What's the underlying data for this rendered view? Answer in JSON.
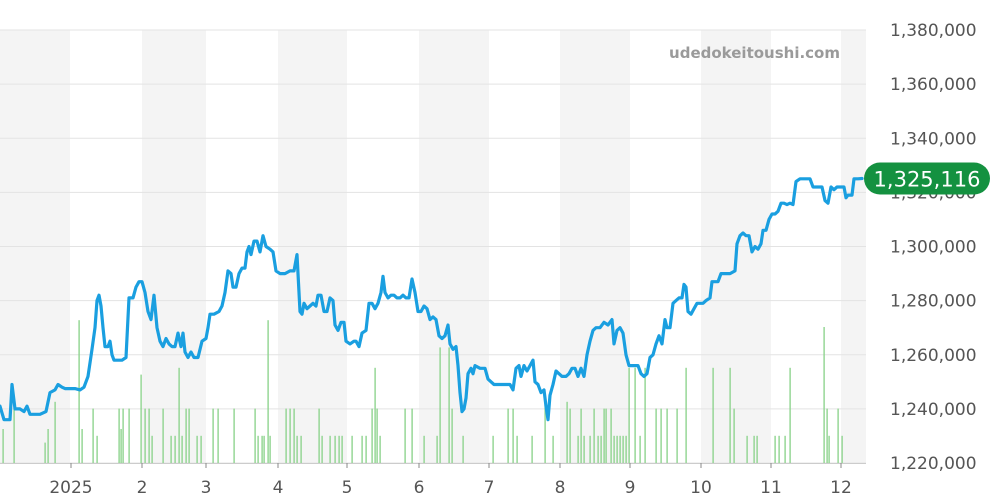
{
  "watermark": "udedokeitoushi.com",
  "chart_data": {
    "type": "line",
    "x_labels": [
      "2025",
      "2",
      "3",
      "4",
      "5",
      "6",
      "7",
      "8",
      "9",
      "10",
      "11",
      "12"
    ],
    "y_ticks": [
      "1,220,000",
      "1,240,000",
      "1,260,000",
      "1,280,000",
      "1,300,000",
      "1,320,000",
      "1,340,000",
      "1,360,000",
      "1,380,000"
    ],
    "ylim": [
      1220000,
      1380000
    ],
    "grid": true,
    "current_value_label": "1,325,116",
    "colors": {
      "line": "#1a9fe0",
      "volume": "#8fd48f",
      "badge": "#149140",
      "band": "#f4f4f4",
      "grid": "#e3e3e3"
    },
    "price_points": [
      [
        0,
        1241000
      ],
      [
        4,
        1236000
      ],
      [
        10,
        1236000
      ],
      [
        12,
        1249000
      ],
      [
        15,
        1240000
      ],
      [
        20,
        1240000
      ],
      [
        24,
        1239000
      ],
      [
        27,
        1241000
      ],
      [
        30,
        1238000
      ],
      [
        35,
        1238000
      ],
      [
        40,
        1238000
      ],
      [
        46,
        1239000
      ],
      [
        50,
        1246000
      ],
      [
        55,
        1247000
      ],
      [
        58,
        1249000
      ],
      [
        62,
        1248000
      ],
      [
        65,
        1247500
      ],
      [
        70,
        1247500
      ],
      [
        75,
        1247500
      ],
      [
        80,
        1247000
      ],
      [
        84,
        1248000
      ],
      [
        88,
        1252000
      ],
      [
        92,
        1262000
      ],
      [
        95,
        1270000
      ],
      [
        97,
        1280000
      ],
      [
        99,
        1282000
      ],
      [
        101,
        1278000
      ],
      [
        103,
        1270000
      ],
      [
        105,
        1263000
      ],
      [
        108,
        1263000
      ],
      [
        110,
        1265000
      ],
      [
        112,
        1260000
      ],
      [
        114,
        1258000
      ],
      [
        118,
        1258000
      ],
      [
        122,
        1258000
      ],
      [
        126,
        1259000
      ],
      [
        129,
        1281000
      ],
      [
        133,
        1281000
      ],
      [
        136,
        1285000
      ],
      [
        139,
        1287000
      ],
      [
        142,
        1287000
      ],
      [
        145,
        1283000
      ],
      [
        148,
        1276000
      ],
      [
        151,
        1273000
      ],
      [
        154,
        1282000
      ],
      [
        157,
        1270000
      ],
      [
        160,
        1265000
      ],
      [
        163,
        1263000
      ],
      [
        166,
        1266000
      ],
      [
        169,
        1264000
      ],
      [
        172,
        1263000
      ],
      [
        175,
        1263000
      ],
      [
        178,
        1268000
      ],
      [
        181,
        1263000
      ],
      [
        183,
        1268000
      ],
      [
        185,
        1261000
      ],
      [
        188,
        1259000
      ],
      [
        191,
        1261000
      ],
      [
        194,
        1259000
      ],
      [
        198,
        1259000
      ],
      [
        202,
        1265000
      ],
      [
        206,
        1266000
      ],
      [
        208,
        1270000
      ],
      [
        210,
        1275000
      ],
      [
        214,
        1275000
      ],
      [
        219,
        1276000
      ],
      [
        222,
        1278000
      ],
      [
        225,
        1283000
      ],
      [
        228,
        1291000
      ],
      [
        231,
        1290000
      ],
      [
        233,
        1285000
      ],
      [
        236,
        1285000
      ],
      [
        239,
        1290000
      ],
      [
        242,
        1292000
      ],
      [
        245,
        1292000
      ],
      [
        247,
        1298000
      ],
      [
        249,
        1300000
      ],
      [
        251,
        1297000
      ],
      [
        254,
        1302000
      ],
      [
        257,
        1302000
      ],
      [
        260,
        1298000
      ],
      [
        263,
        1304000
      ],
      [
        266,
        1300000
      ],
      [
        270,
        1299000
      ],
      [
        273,
        1298000
      ],
      [
        276,
        1291000
      ],
      [
        280,
        1290000
      ],
      [
        285,
        1290000
      ],
      [
        290,
        1291000
      ],
      [
        294,
        1291000
      ],
      [
        297,
        1297000
      ],
      [
        300,
        1276000
      ],
      [
        302,
        1275000
      ],
      [
        304,
        1279000
      ],
      [
        307,
        1277000
      ],
      [
        310,
        1278000
      ],
      [
        313,
        1279000
      ],
      [
        316,
        1278000
      ],
      [
        318,
        1282000
      ],
      [
        321,
        1282000
      ],
      [
        324,
        1276000
      ],
      [
        327,
        1276000
      ],
      [
        330,
        1281000
      ],
      [
        333,
        1280000
      ],
      [
        335,
        1271000
      ],
      [
        338,
        1269000
      ],
      [
        341,
        1272000
      ],
      [
        344,
        1272000
      ],
      [
        346,
        1265000
      ],
      [
        350,
        1264000
      ],
      [
        354,
        1265000
      ],
      [
        356,
        1265000
      ],
      [
        359,
        1263000
      ],
      [
        362,
        1268000
      ],
      [
        366,
        1269000
      ],
      [
        369,
        1279000
      ],
      [
        372,
        1279000
      ],
      [
        375,
        1277000
      ],
      [
        378,
        1279000
      ],
      [
        381,
        1283000
      ],
      [
        383,
        1289000
      ],
      [
        385,
        1283000
      ],
      [
        388,
        1281000
      ],
      [
        391,
        1282000
      ],
      [
        394,
        1282000
      ],
      [
        397,
        1281000
      ],
      [
        400,
        1281000
      ],
      [
        403,
        1282000
      ],
      [
        406,
        1281000
      ],
      [
        409,
        1281000
      ],
      [
        412,
        1288000
      ],
      [
        415,
        1283000
      ],
      [
        418,
        1276000
      ],
      [
        421,
        1276000
      ],
      [
        424,
        1278000
      ],
      [
        427,
        1277000
      ],
      [
        430,
        1273000
      ],
      [
        433,
        1274000
      ],
      [
        436,
        1273000
      ],
      [
        439,
        1267000
      ],
      [
        442,
        1266000
      ],
      [
        445,
        1267000
      ],
      [
        448,
        1271000
      ],
      [
        450,
        1264000
      ],
      [
        453,
        1262000
      ],
      [
        456,
        1263000
      ],
      [
        458,
        1256000
      ],
      [
        460,
        1246000
      ],
      [
        462,
        1239000
      ],
      [
        464,
        1240000
      ],
      [
        466,
        1244000
      ],
      [
        468,
        1253000
      ],
      [
        471,
        1255000
      ],
      [
        473,
        1253000
      ],
      [
        475,
        1256000
      ],
      [
        480,
        1255000
      ],
      [
        485,
        1255000
      ],
      [
        488,
        1251000
      ],
      [
        491,
        1250000
      ],
      [
        494,
        1249000
      ],
      [
        500,
        1249000
      ],
      [
        505,
        1249000
      ],
      [
        510,
        1249000
      ],
      [
        513,
        1247000
      ],
      [
        516,
        1255000
      ],
      [
        519,
        1256000
      ],
      [
        521,
        1252000
      ],
      [
        524,
        1256000
      ],
      [
        527,
        1254000
      ],
      [
        530,
        1256000
      ],
      [
        533,
        1258000
      ],
      [
        535,
        1250000
      ],
      [
        538,
        1249000
      ],
      [
        541,
        1246000
      ],
      [
        544,
        1247000
      ],
      [
        546,
        1241000
      ],
      [
        548,
        1236000
      ],
      [
        550,
        1245000
      ],
      [
        553,
        1249000
      ],
      [
        556,
        1254000
      ],
      [
        559,
        1253000
      ],
      [
        562,
        1252000
      ],
      [
        566,
        1252000
      ],
      [
        569,
        1253000
      ],
      [
        572,
        1255000
      ],
      [
        575,
        1255000
      ],
      [
        578,
        1252000
      ],
      [
        581,
        1255000
      ],
      [
        584,
        1252000
      ],
      [
        587,
        1260000
      ],
      [
        590,
        1265000
      ],
      [
        593,
        1269000
      ],
      [
        596,
        1270000
      ],
      [
        600,
        1270000
      ],
      [
        604,
        1272000
      ],
      [
        608,
        1271000
      ],
      [
        612,
        1273000
      ],
      [
        614,
        1264000
      ],
      [
        617,
        1269000
      ],
      [
        620,
        1270000
      ],
      [
        623,
        1268000
      ],
      [
        626,
        1260000
      ],
      [
        629,
        1256000
      ],
      [
        632,
        1256000
      ],
      [
        635,
        1256000
      ],
      [
        638,
        1256000
      ],
      [
        641,
        1253000
      ],
      [
        644,
        1252000
      ],
      [
        647,
        1253000
      ],
      [
        650,
        1259000
      ],
      [
        653,
        1260000
      ],
      [
        656,
        1264000
      ],
      [
        659,
        1267000
      ],
      [
        662,
        1264000
      ],
      [
        665,
        1273000
      ],
      [
        667,
        1270000
      ],
      [
        670,
        1270000
      ],
      [
        673,
        1279000
      ],
      [
        676,
        1280000
      ],
      [
        679,
        1281000
      ],
      [
        682,
        1281000
      ],
      [
        684,
        1286000
      ],
      [
        686,
        1285000
      ],
      [
        688,
        1276000
      ],
      [
        691,
        1275000
      ],
      [
        694,
        1277000
      ],
      [
        697,
        1279000
      ],
      [
        700,
        1279000
      ],
      [
        703,
        1279000
      ],
      [
        706,
        1280000
      ],
      [
        710,
        1281000
      ],
      [
        712,
        1287000
      ],
      [
        715,
        1287000
      ],
      [
        718,
        1287000
      ],
      [
        721,
        1290000
      ],
      [
        725,
        1290000
      ],
      [
        730,
        1290000
      ],
      [
        735,
        1291000
      ],
      [
        737,
        1301000
      ],
      [
        740,
        1304000
      ],
      [
        743,
        1305000
      ],
      [
        746,
        1304000
      ],
      [
        749,
        1304000
      ],
      [
        752,
        1298000
      ],
      [
        755,
        1300000
      ],
      [
        758,
        1299000
      ],
      [
        761,
        1301000
      ],
      [
        763,
        1306000
      ],
      [
        766,
        1306000
      ],
      [
        769,
        1310000
      ],
      [
        772,
        1312000
      ],
      [
        775,
        1312000
      ],
      [
        778,
        1313000
      ],
      [
        781,
        1316000
      ],
      [
        784,
        1316000
      ],
      [
        787,
        1315500
      ],
      [
        790,
        1316000
      ],
      [
        793,
        1315500
      ],
      [
        796,
        1324000
      ],
      [
        800,
        1325000
      ],
      [
        805,
        1325000
      ],
      [
        810,
        1325000
      ],
      [
        813,
        1322000
      ],
      [
        816,
        1322000
      ],
      [
        819,
        1322000
      ],
      [
        822,
        1322000
      ],
      [
        825,
        1317000
      ],
      [
        828,
        1316000
      ],
      [
        831,
        1322000
      ],
      [
        834,
        1321000
      ],
      [
        837,
        1322000
      ],
      [
        841,
        1322000
      ],
      [
        844,
        1322000
      ],
      [
        846,
        1318000
      ],
      [
        848,
        1319000
      ],
      [
        852,
        1319000
      ],
      [
        854,
        1325000
      ],
      [
        858,
        1325000
      ],
      [
        862,
        1325116
      ]
    ],
    "volume_points": [
      [
        3,
        5
      ],
      [
        14,
        8
      ],
      [
        45,
        3
      ],
      [
        48,
        5
      ],
      [
        55,
        9
      ],
      [
        79,
        21
      ],
      [
        82,
        5
      ],
      [
        93,
        8
      ],
      [
        97,
        4
      ],
      [
        119,
        8
      ],
      [
        121,
        5
      ],
      [
        123,
        8
      ],
      [
        129,
        8
      ],
      [
        141,
        13
      ],
      [
        145,
        8
      ],
      [
        149,
        8
      ],
      [
        152,
        4
      ],
      [
        163,
        8
      ],
      [
        171,
        4
      ],
      [
        175,
        4
      ],
      [
        179,
        14
      ],
      [
        182,
        4
      ],
      [
        186,
        8
      ],
      [
        189,
        8
      ],
      [
        197,
        4
      ],
      [
        201,
        4
      ],
      [
        213,
        8
      ],
      [
        218,
        8
      ],
      [
        234,
        8
      ],
      [
        255,
        8
      ],
      [
        258,
        4
      ],
      [
        262,
        4
      ],
      [
        264,
        4
      ],
      [
        268,
        21
      ],
      [
        270,
        4
      ],
      [
        286,
        8
      ],
      [
        290,
        8
      ],
      [
        294,
        8
      ],
      [
        297,
        4
      ],
      [
        301,
        4
      ],
      [
        319,
        8
      ],
      [
        322,
        4
      ],
      [
        330,
        4
      ],
      [
        335,
        4
      ],
      [
        339,
        4
      ],
      [
        342,
        4
      ],
      [
        352,
        4
      ],
      [
        362,
        4
      ],
      [
        366,
        4
      ],
      [
        372,
        8
      ],
      [
        375,
        14
      ],
      [
        377,
        8
      ],
      [
        380,
        4
      ],
      [
        405,
        8
      ],
      [
        412,
        8
      ],
      [
        424,
        4
      ],
      [
        437,
        4
      ],
      [
        440,
        17
      ],
      [
        449,
        17
      ],
      [
        452,
        8
      ],
      [
        463,
        4
      ],
      [
        493,
        4
      ],
      [
        508,
        8
      ],
      [
        513,
        8
      ],
      [
        517,
        4
      ],
      [
        532,
        4
      ],
      [
        545,
        9
      ],
      [
        553,
        4
      ],
      [
        567,
        9
      ],
      [
        570,
        8
      ],
      [
        578,
        4
      ],
      [
        581,
        8
      ],
      [
        584,
        4
      ],
      [
        590,
        4
      ],
      [
        594,
        8
      ],
      [
        598,
        4
      ],
      [
        601,
        4
      ],
      [
        604,
        8
      ],
      [
        606,
        8
      ],
      [
        611,
        8
      ],
      [
        614,
        4
      ],
      [
        617,
        4
      ],
      [
        620,
        4
      ],
      [
        623,
        4
      ],
      [
        626,
        4
      ],
      [
        629,
        14
      ],
      [
        635,
        14
      ],
      [
        640,
        4
      ],
      [
        645,
        14
      ],
      [
        656,
        8
      ],
      [
        661,
        8
      ],
      [
        667,
        8
      ],
      [
        677,
        8
      ],
      [
        686,
        14
      ],
      [
        713,
        14
      ],
      [
        730,
        14
      ],
      [
        734,
        8
      ],
      [
        747,
        4
      ],
      [
        754,
        4
      ],
      [
        757,
        4
      ],
      [
        775,
        4
      ],
      [
        779,
        4
      ],
      [
        785,
        4
      ],
      [
        790,
        14
      ],
      [
        824,
        20
      ],
      [
        827,
        8
      ],
      [
        829,
        4
      ],
      [
        838,
        8
      ],
      [
        842,
        4
      ]
    ]
  }
}
